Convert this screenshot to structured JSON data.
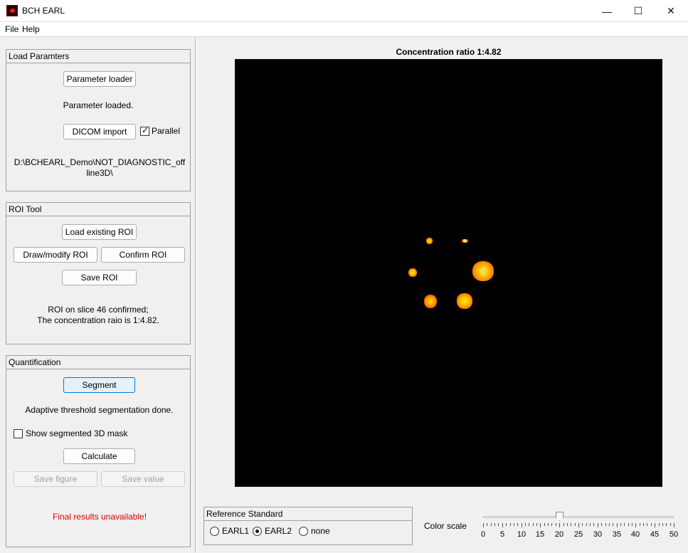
{
  "window": {
    "title": "BCH EARL",
    "minimize_glyph": "—",
    "maximize_glyph": "☐",
    "close_glyph": "✕"
  },
  "menu": {
    "file": "File",
    "help": "Help"
  },
  "load_panel": {
    "title": "Load Paramters",
    "parameter_loader_button": "Parameter loader",
    "status": "Parameter loaded.",
    "dicom_import_button": "DICOM import",
    "parallel_label": "Parallel",
    "parallel_checked": true,
    "path_line1": "D:\\BCHEARL_Demo\\NOT_DIAGNOSTIC_off",
    "path_line2": "line3D\\"
  },
  "roi_panel": {
    "title": "ROI Tool",
    "load_roi_button": "Load existing ROI",
    "draw_roi_button": "Draw/modify ROI",
    "confirm_roi_button": "Confirm ROI",
    "save_roi_button": "Save ROI",
    "status_line1": "ROI on slice 46 confirmed;",
    "status_line2": "The concentration raio is 1:4.82."
  },
  "quant_panel": {
    "title": "Quantification",
    "segment_button": "Segment",
    "status": "Adaptive threshold segmentation done.",
    "show_mask_label": "Show segmented 3D mask",
    "show_mask_checked": false,
    "calculate_button": "Calculate",
    "save_figure_button": "Save figure",
    "save_value_button": "Save value",
    "results_message": "Final results unavailable!",
    "results_color": "#e00000"
  },
  "image": {
    "title": "Concentration ratio 1:4.82",
    "background": "#000000"
  },
  "reference": {
    "title": "Reference Standard",
    "options": [
      "EARL1",
      "EARL2",
      "none"
    ],
    "selected": "EARL2"
  },
  "color_scale": {
    "label": "Color scale",
    "min": 0,
    "max": 50,
    "value": 20,
    "tick_labels": [
      "0",
      "5",
      "10",
      "15",
      "20",
      "25",
      "30",
      "35",
      "40",
      "45",
      "50"
    ]
  }
}
